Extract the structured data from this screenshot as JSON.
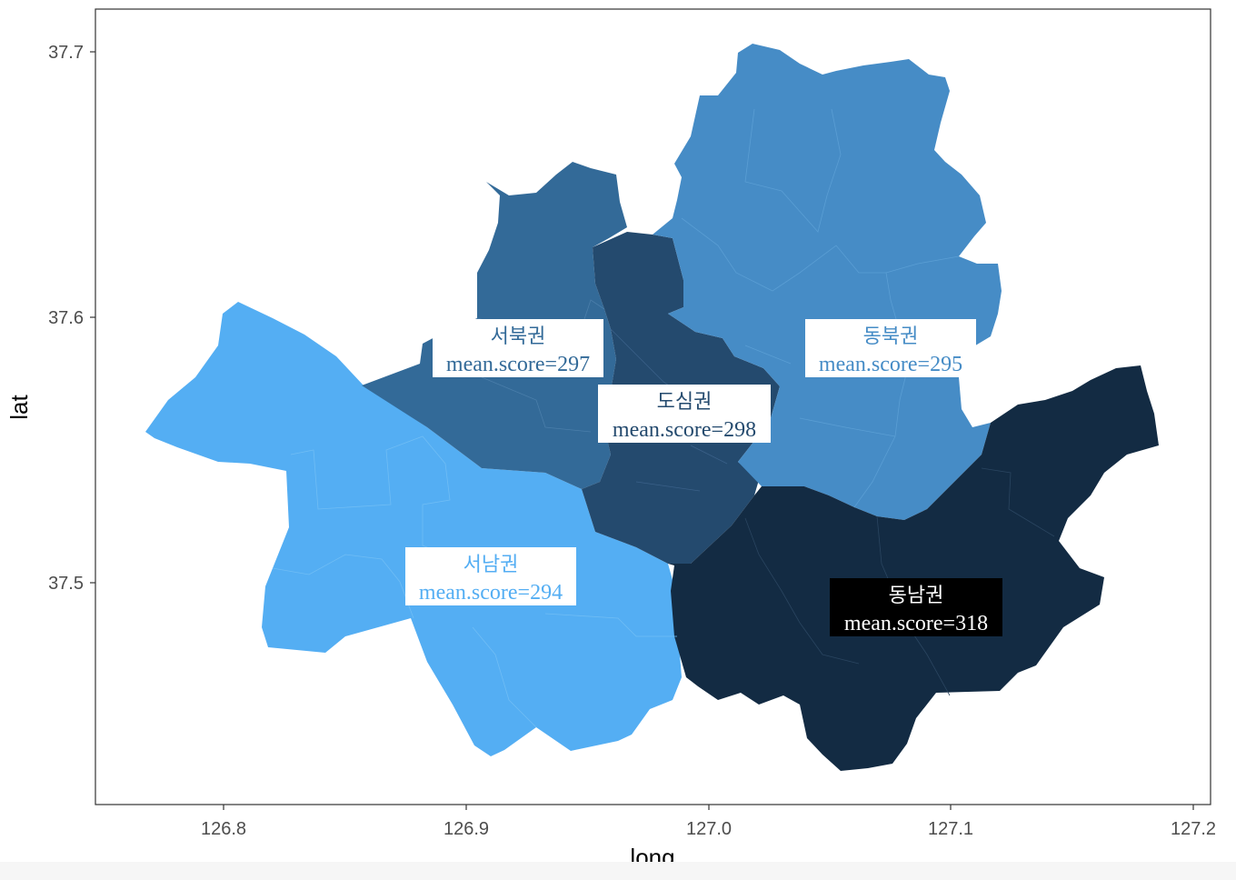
{
  "axes": {
    "x_title": "long",
    "y_title": "lat",
    "x_ticks": [
      "126.8",
      "126.9",
      "127.0",
      "127.1",
      "127.2"
    ],
    "y_ticks": [
      "37.5",
      "37.6",
      "37.7"
    ]
  },
  "colors": {
    "background": "#ffffff",
    "panel_border": "#333333",
    "seobuk": "#336A98",
    "dosim": "#244A6E",
    "dongbuk": "#468CC6",
    "seonam": "#54AEF3",
    "dongnam": "#132B43"
  },
  "regions": [
    {
      "id": "seobuk",
      "name": "서북권",
      "stat": "mean.score=297",
      "label_style": "white-box"
    },
    {
      "id": "dosim",
      "name": "도심권",
      "stat": "mean.score=298",
      "label_style": "white-box"
    },
    {
      "id": "dongbuk",
      "name": "동북권",
      "stat": "mean.score=295",
      "label_style": "white-box"
    },
    {
      "id": "seonam",
      "name": "서남권",
      "stat": "mean.score=294",
      "label_style": "white-box"
    },
    {
      "id": "dongnam",
      "name": "동남권",
      "stat": "mean.score=318",
      "label_style": "black-box"
    }
  ]
}
